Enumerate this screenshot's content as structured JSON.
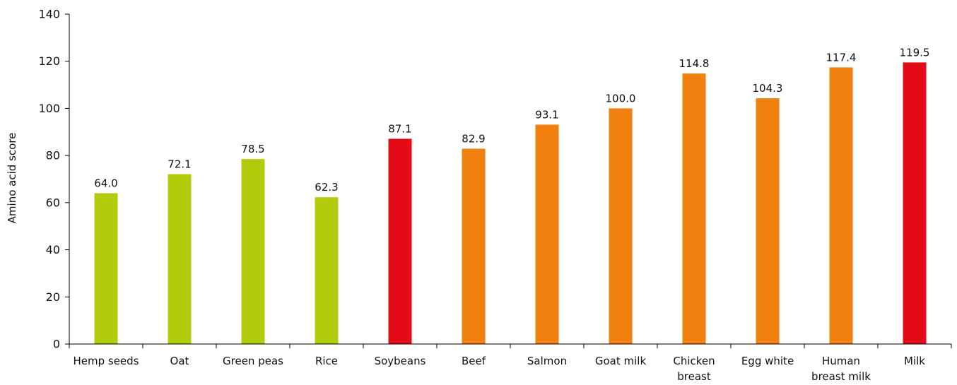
{
  "chart_data": {
    "type": "bar",
    "categories": [
      "Hemp seeds",
      "Oat",
      "Green peas",
      "Rice",
      "Soybeans",
      "Beef",
      "Salmon",
      "Goat milk",
      "Chicken breast",
      "Egg white",
      "Human breast milk",
      "Milk"
    ],
    "category_lines": [
      [
        "Hemp seeds"
      ],
      [
        "Oat"
      ],
      [
        "Green peas"
      ],
      [
        "Rice"
      ],
      [
        "Soybeans"
      ],
      [
        "Beef"
      ],
      [
        "Salmon"
      ],
      [
        "Goat milk"
      ],
      [
        "Chicken",
        "breast"
      ],
      [
        "Egg white"
      ],
      [
        "Human",
        "breast milk"
      ],
      [
        "Milk"
      ]
    ],
    "values": [
      64.0,
      72.1,
      78.5,
      62.3,
      87.1,
      82.9,
      93.1,
      100.0,
      114.8,
      104.3,
      117.4,
      119.5
    ],
    "value_labels": [
      "64.0",
      "72.1",
      "78.5",
      "62.3",
      "87.1",
      "82.9",
      "93.1",
      "100.0",
      "114.8",
      "104.3",
      "117.4",
      "119.5"
    ],
    "bar_colors": [
      "#b2cc0c",
      "#b2cc0c",
      "#b2cc0c",
      "#b2cc0c",
      "#e30b17",
      "#f2800f",
      "#f2800f",
      "#f2800f",
      "#f2800f",
      "#f2800f",
      "#f2800f",
      "#e30b17"
    ],
    "yticks": [
      0,
      20,
      40,
      60,
      80,
      100,
      120,
      140
    ],
    "xlabel": "",
    "ylabel": "Amino acid score",
    "ylim": [
      0,
      140
    ],
    "grid": false,
    "legend": "none"
  }
}
